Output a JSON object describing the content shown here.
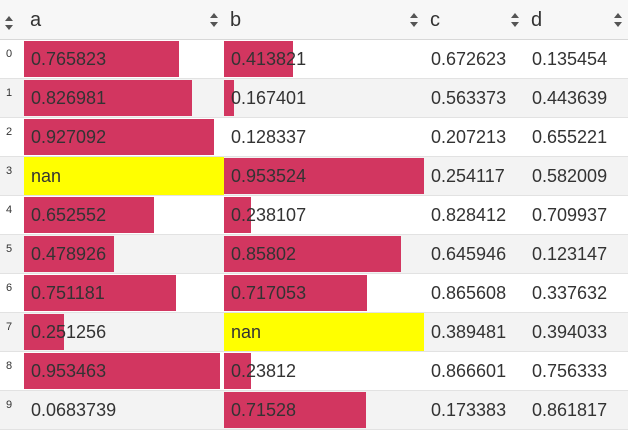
{
  "header": {
    "columns": [
      "a",
      "b",
      "c",
      "d"
    ]
  },
  "bar_color": "#d23660",
  "nan_color": "#ffff00",
  "bar_columns": [
    "a",
    "b"
  ],
  "rows": [
    {
      "index": "0",
      "a": "0.765823",
      "b": "0.413821",
      "c": "0.672623",
      "d": "0.135454",
      "a_level": 0.7909,
      "b_level": 0.3426
    },
    {
      "index": "1",
      "a": "0.826981",
      "b": "0.167401",
      "c": "0.563373",
      "d": "0.443639",
      "a_level": 0.8594,
      "b_level": 0.0475
    },
    {
      "index": "2",
      "a": "0.927092",
      "b": "0.128337",
      "c": "0.207213",
      "d": "0.655221",
      "a_level": 0.9715,
      "b_level": 0.0
    },
    {
      "index": "3",
      "a": "nan",
      "b": "0.953524",
      "c": "0.254117",
      "d": "0.582009",
      "a_level": null,
      "b_level": 1.0
    },
    {
      "index": "4",
      "a": "0.652552",
      "b": "0.238107",
      "c": "0.828412",
      "d": "0.709937",
      "a_level": 0.664,
      "b_level": 0.133
    },
    {
      "index": "5",
      "a": "0.478926",
      "b": "0.85802",
      "c": "0.645946",
      "d": "0.123147",
      "a_level": 0.46,
      "b_level": 0.8843
    },
    {
      "index": "6",
      "a": "0.751181",
      "b": "0.717053",
      "c": "0.865608",
      "d": "0.337632",
      "a_level": 0.774,
      "b_level": 0.7135
    },
    {
      "index": "7",
      "a": "0.251256",
      "b": "nan",
      "c": "0.389481",
      "d": "0.394033",
      "a_level": 0.205,
      "b_level": null
    },
    {
      "index": "8",
      "a": "0.953463",
      "b": "0.23812",
      "c": "0.866601",
      "d": "0.756333",
      "a_level": 1.0,
      "b_level": 0.133
    },
    {
      "index": "9",
      "a": "0.0683739",
      "b": "0.71528",
      "c": "0.173383",
      "d": "0.861817",
      "a_level": 0.0,
      "b_level": 0.7113
    }
  ]
}
